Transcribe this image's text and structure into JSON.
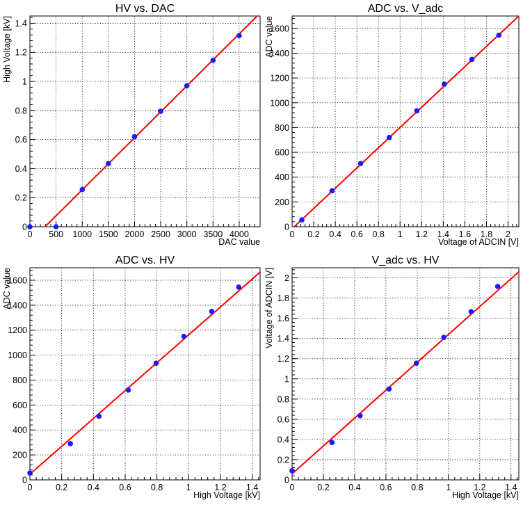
{
  "colors": {
    "fit_line": "#ff0000",
    "markers": "#1a1aff",
    "grid": "#000000",
    "frame": "#000000",
    "background": "#ffffff"
  },
  "chart_data": [
    {
      "type": "scatter",
      "title": "HV vs. DAC",
      "xlabel": "DAC value",
      "ylabel": "High Voltage [kV]",
      "xlim": [
        0,
        4400
      ],
      "ylim": [
        0,
        1.45
      ],
      "xticks": [
        0,
        500,
        1000,
        1500,
        2000,
        2500,
        3000,
        3500,
        4000
      ],
      "xtick_labels": [
        "0",
        "500",
        "1000",
        "1500",
        "2000",
        "2500",
        "3000",
        "3500",
        "4000"
      ],
      "yticks": [
        0,
        0.2,
        0.4,
        0.6,
        0.8,
        1.0,
        1.2,
        1.4
      ],
      "ytick_labels": [
        "0",
        "0.2",
        "0.4",
        "0.6",
        "0.8",
        "1",
        "1.2",
        "1.4"
      ],
      "grid": true,
      "series": [
        {
          "type": "scatter",
          "x": [
            0,
            500,
            1000,
            1500,
            2000,
            2500,
            3000,
            3500,
            4000
          ],
          "y": [
            0,
            0,
            0.255,
            0.435,
            0.62,
            0.795,
            0.97,
            1.145,
            1.315
          ]
        },
        {
          "type": "line",
          "x": [
            200,
            4400
          ],
          "y": [
            -0.032,
            1.47
          ]
        }
      ]
    },
    {
      "type": "scatter",
      "title": "ADC vs. V_adc",
      "xlabel": "Voltage of ADCIN [V]",
      "ylabel": "ADC value",
      "xlim": [
        0,
        2.1
      ],
      "ylim": [
        0,
        1700
      ],
      "xticks": [
        0,
        0.2,
        0.4,
        0.6,
        0.8,
        1.0,
        1.2,
        1.4,
        1.6,
        1.8,
        2.0
      ],
      "xtick_labels": [
        "0",
        "0.2",
        "0.4",
        "0.6",
        "0.8",
        "1",
        "1.2",
        "1.4",
        "1.6",
        "1.8",
        "2"
      ],
      "yticks": [
        0,
        200,
        400,
        600,
        800,
        1000,
        1200,
        1400,
        1600
      ],
      "ytick_labels": [
        "0",
        "200",
        "400",
        "600",
        "800",
        "1000",
        "1200",
        "1400",
        "1600"
      ],
      "grid": true,
      "series": [
        {
          "type": "scatter",
          "x": [
            0.09,
            0.37,
            0.635,
            0.9,
            1.155,
            1.41,
            1.665,
            1.915
          ],
          "y": [
            55,
            290,
            510,
            720,
            935,
            1150,
            1350,
            1545
          ]
        },
        {
          "type": "line",
          "x": [
            0.02,
            2.1
          ],
          "y": [
            0,
            1700
          ]
        }
      ]
    },
    {
      "type": "scatter",
      "title": "ADC vs. HV",
      "xlabel": "High Voltage [kV]",
      "ylabel": "ADC value",
      "xlim": [
        0,
        1.45
      ],
      "ylim": [
        0,
        1700
      ],
      "xticks": [
        0,
        0.2,
        0.4,
        0.6,
        0.8,
        1.0,
        1.2,
        1.4
      ],
      "xtick_labels": [
        "0",
        "0.2",
        "0.4",
        "0.6",
        "0.8",
        "1",
        "1.2",
        "1.4"
      ],
      "yticks": [
        0,
        200,
        400,
        600,
        800,
        1000,
        1200,
        1400,
        1600
      ],
      "ytick_labels": [
        "0",
        "200",
        "400",
        "600",
        "800",
        "1000",
        "1200",
        "1400",
        "1600"
      ],
      "grid": true,
      "series": [
        {
          "type": "scatter",
          "x": [
            0,
            0.255,
            0.435,
            0.62,
            0.795,
            0.97,
            1.145,
            1.315
          ],
          "y": [
            55,
            290,
            510,
            720,
            935,
            1150,
            1350,
            1545
          ]
        },
        {
          "type": "line",
          "x": [
            0,
            1.45
          ],
          "y": [
            45,
            1665
          ]
        }
      ]
    },
    {
      "type": "scatter",
      "title": "V_adc vs. HV",
      "xlabel": "High Voltage [kV]",
      "ylabel": "Voltage of ADCIN [V]",
      "xlim": [
        0,
        1.45
      ],
      "ylim": [
        0,
        2.1
      ],
      "xticks": [
        0,
        0.2,
        0.4,
        0.6,
        0.8,
        1.0,
        1.2,
        1.4
      ],
      "xtick_labels": [
        "0",
        "0.2",
        "0.4",
        "0.6",
        "0.8",
        "1",
        "1.2",
        "1.4"
      ],
      "yticks": [
        0,
        0.2,
        0.4,
        0.6,
        0.8,
        1.0,
        1.2,
        1.4,
        1.6,
        1.8,
        2.0
      ],
      "ytick_labels": [
        "0",
        "0.2",
        "0.4",
        "0.6",
        "0.8",
        "1",
        "1.2",
        "1.4",
        "1.6",
        "1.8",
        "2"
      ],
      "grid": true,
      "series": [
        {
          "type": "scatter",
          "x": [
            0,
            0.255,
            0.435,
            0.62,
            0.795,
            0.97,
            1.145,
            1.315
          ],
          "y": [
            0.09,
            0.37,
            0.635,
            0.9,
            1.155,
            1.41,
            1.665,
            1.915
          ]
        },
        {
          "type": "line",
          "x": [
            0,
            1.45
          ],
          "y": [
            0.06,
            2.06
          ]
        }
      ]
    }
  ]
}
